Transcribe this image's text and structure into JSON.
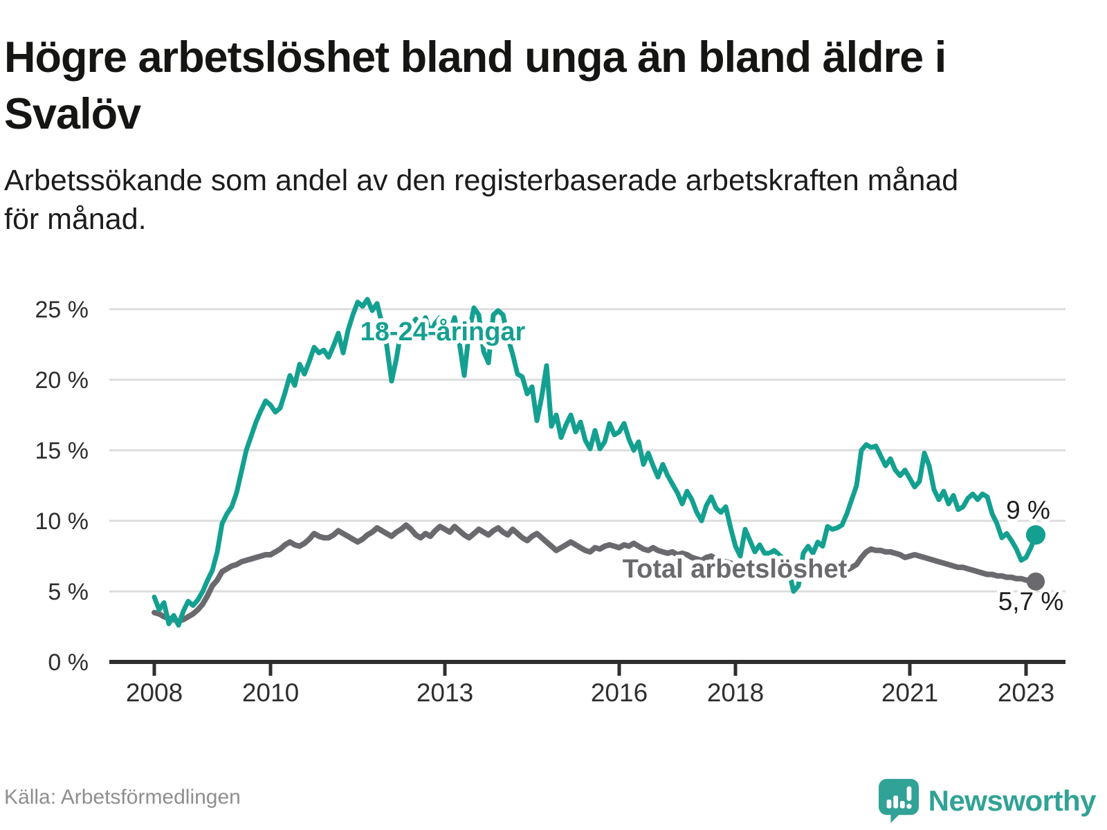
{
  "header": {
    "title": "Högre arbetslöshet bland unga än bland äldre i\nSvalöv",
    "subtitle": "Arbetssökande som andel av den registerbaserade arbetskraften månad\nför månad."
  },
  "footer": {
    "source": "Källa: Arbetsförmedlingen",
    "brand": "Newsworthy"
  },
  "colors": {
    "young": "#14a090",
    "total": "#6a6a6e",
    "axis": "#2e2e2e",
    "grid": "#dcdcdc",
    "tick_text": "#2e2e2e",
    "end_label_text": "#1d1d1d",
    "brand": "#31a296",
    "background": "#ffffff"
  },
  "chart_data": {
    "type": "line",
    "title": "Högre arbetslöshet bland unga än bland äldre i Svalöv",
    "subtitle": "Arbetssökande som andel av den registerbaserade arbetskraften månad för månad.",
    "unit": "percent",
    "frequency": "monthly",
    "x_start_year": 2008,
    "x_start_month": 1,
    "x_end_year": 2023,
    "x_end_month": 3,
    "x_ticks": [
      2008,
      2010,
      2013,
      2016,
      2018,
      2021,
      2023
    ],
    "y_ticks": [
      0,
      5,
      10,
      15,
      20,
      25
    ],
    "y_tick_labels": [
      "0 %",
      "5 %",
      "10 %",
      "15 %",
      "20 %",
      "25 %"
    ],
    "ylim": [
      0,
      26.5
    ],
    "grid": "horizontal",
    "legend_position": "inline-labels",
    "series": [
      {
        "key": "young",
        "name": "18-24-åringar",
        "color": "#14a090",
        "end_label": "9 %",
        "last_value": 9.0,
        "values": [
          4.6,
          3.7,
          4.2,
          2.7,
          3.3,
          2.6,
          3.6,
          4.3,
          4.0,
          4.4,
          5.0,
          5.8,
          6.5,
          7.8,
          9.8,
          10.5,
          11.0,
          12.0,
          13.5,
          15.0,
          16.0,
          17.0,
          17.8,
          18.5,
          18.2,
          17.7,
          18.0,
          19.1,
          20.3,
          19.6,
          21.1,
          20.4,
          21.3,
          22.3,
          21.9,
          22.1,
          21.6,
          22.4,
          23.3,
          21.9,
          23.5,
          24.6,
          25.5,
          25.2,
          25.7,
          24.9,
          25.4,
          24.0,
          22.4,
          19.9,
          21.5,
          23.6,
          22.9,
          23.8,
          24.3,
          23.7,
          24.4,
          23.3,
          24.0,
          24.4,
          24.0,
          23.2,
          24.4,
          22.6,
          20.3,
          23.4,
          25.1,
          24.6,
          22.0,
          21.2,
          24.6,
          24.9,
          24.6,
          23.0,
          21.8,
          20.4,
          20.2,
          19.0,
          19.5,
          17.1,
          18.8,
          21.0,
          16.7,
          17.5,
          15.9,
          16.8,
          17.5,
          16.3,
          17.0,
          15.7,
          15.1,
          16.4,
          15.1,
          15.6,
          16.9,
          16.1,
          16.3,
          16.9,
          15.8,
          15.0,
          15.6,
          14.0,
          14.8,
          13.9,
          13.1,
          14.0,
          13.2,
          12.6,
          12.0,
          11.2,
          12.1,
          11.5,
          10.6,
          10.0,
          11.1,
          11.7,
          10.9,
          10.6,
          11.0,
          9.5,
          8.2,
          7.5,
          9.4,
          8.6,
          7.8,
          8.3,
          7.7,
          7.7,
          7.9,
          7.6,
          7.3,
          6.5,
          5.0,
          5.4,
          7.7,
          8.2,
          7.7,
          8.5,
          8.2,
          9.6,
          9.4,
          9.5,
          9.7,
          10.5,
          11.5,
          12.5,
          15.0,
          15.4,
          15.2,
          15.3,
          14.6,
          13.9,
          14.4,
          13.6,
          13.2,
          13.6,
          13.0,
          12.4,
          12.8,
          14.8,
          13.9,
          12.2,
          11.5,
          12.1,
          11.2,
          11.8,
          10.8,
          11.0,
          11.6,
          11.9,
          11.5,
          11.9,
          11.7,
          10.5,
          9.8,
          8.8,
          9.1,
          8.6,
          8.0,
          7.2,
          7.4,
          8.1,
          9.0
        ]
      },
      {
        "key": "total",
        "name": "Total arbetslöshet",
        "color": "#6a6a6e",
        "end_label": "5,7 %",
        "last_value": 5.7,
        "values": [
          3.5,
          3.4,
          3.2,
          3.1,
          3.0,
          2.9,
          3.0,
          3.2,
          3.4,
          3.7,
          4.1,
          4.7,
          5.4,
          5.8,
          6.4,
          6.6,
          6.8,
          6.9,
          7.1,
          7.2,
          7.3,
          7.4,
          7.5,
          7.6,
          7.6,
          7.8,
          8.0,
          8.3,
          8.5,
          8.3,
          8.2,
          8.4,
          8.7,
          9.1,
          8.9,
          8.8,
          8.8,
          9.0,
          9.3,
          9.1,
          8.9,
          8.7,
          8.5,
          8.7,
          9.0,
          9.2,
          9.5,
          9.3,
          9.1,
          8.9,
          9.2,
          9.4,
          9.7,
          9.4,
          9.0,
          8.8,
          9.1,
          8.9,
          9.3,
          9.6,
          9.4,
          9.2,
          9.6,
          9.3,
          9.0,
          8.8,
          9.1,
          9.4,
          9.2,
          9.0,
          9.3,
          9.5,
          9.2,
          9.0,
          9.4,
          9.1,
          8.8,
          8.6,
          8.9,
          9.1,
          8.8,
          8.5,
          8.2,
          7.9,
          8.1,
          8.3,
          8.5,
          8.3,
          8.1,
          7.9,
          7.8,
          8.1,
          8.0,
          8.2,
          8.3,
          8.2,
          8.1,
          8.3,
          8.2,
          8.4,
          8.2,
          8.0,
          7.9,
          8.1,
          7.9,
          7.8,
          7.7,
          7.8,
          7.6,
          7.7,
          7.6,
          7.4,
          7.3,
          7.2,
          7.4,
          7.5,
          7.3,
          7.2,
          7.1,
          7.0,
          6.9,
          6.8,
          6.9,
          6.8,
          6.7,
          6.6,
          6.7,
          6.6,
          6.5,
          6.5,
          6.4,
          6.4,
          6.4,
          6.3,
          6.3,
          6.2,
          6.2,
          6.1,
          6.2,
          6.3,
          6.2,
          6.3,
          6.4,
          6.5,
          6.7,
          6.9,
          7.4,
          7.8,
          8.0,
          7.9,
          7.9,
          7.8,
          7.8,
          7.7,
          7.6,
          7.4,
          7.5,
          7.6,
          7.5,
          7.4,
          7.3,
          7.2,
          7.1,
          7.0,
          6.9,
          6.8,
          6.7,
          6.7,
          6.6,
          6.5,
          6.4,
          6.3,
          6.2,
          6.2,
          6.1,
          6.1,
          6.0,
          6.0,
          5.9,
          5.9,
          5.8,
          5.8,
          5.7
        ]
      }
    ]
  }
}
